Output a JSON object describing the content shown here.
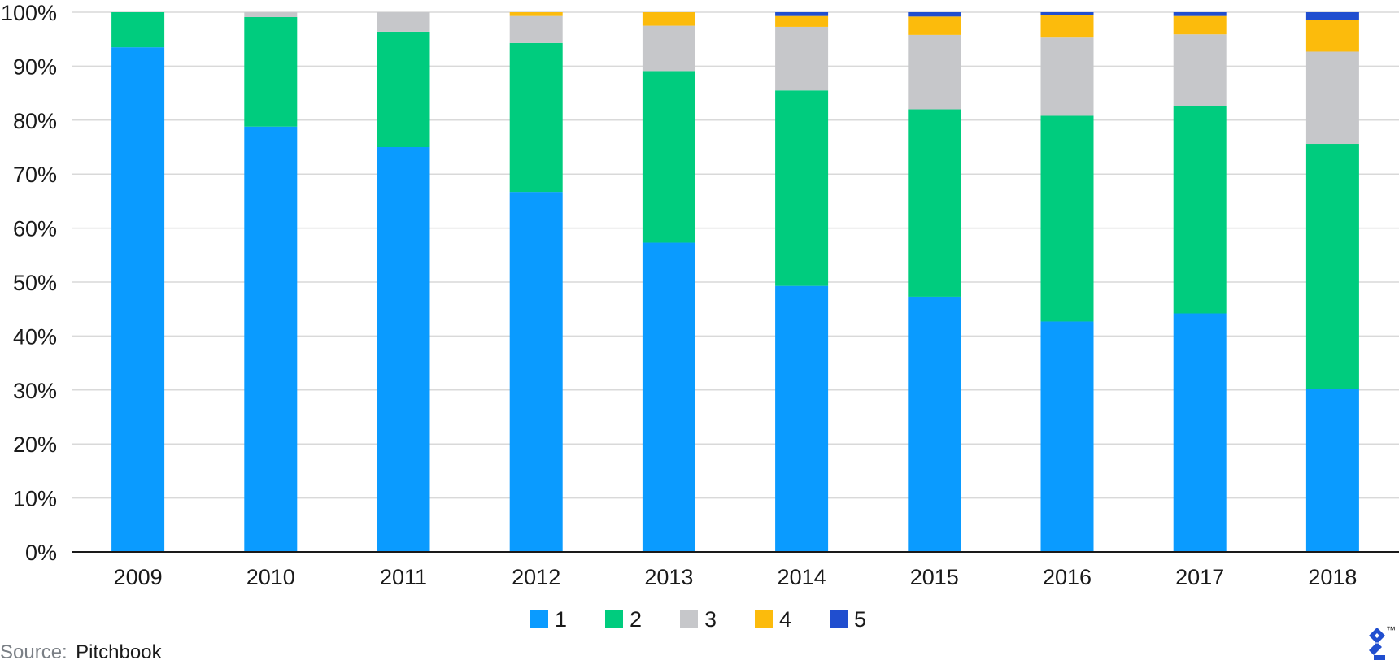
{
  "chart_data": {
    "type": "bar",
    "stacked": true,
    "categories": [
      "2009",
      "2010",
      "2011",
      "2012",
      "2013",
      "2014",
      "2015",
      "2016",
      "2017",
      "2018"
    ],
    "series": [
      {
        "name": "1",
        "color": "#0a9bff",
        "values": [
          93.5,
          78.8,
          75.0,
          66.7,
          57.3,
          49.3,
          47.3,
          42.7,
          44.2,
          30.2
        ]
      },
      {
        "name": "2",
        "color": "#00cc7e",
        "values": [
          6.5,
          20.3,
          21.4,
          27.6,
          31.8,
          36.2,
          34.7,
          38.1,
          38.4,
          45.4
        ]
      },
      {
        "name": "3",
        "color": "#c6c7ca",
        "values": [
          0.0,
          0.9,
          3.6,
          5.0,
          8.4,
          11.8,
          13.8,
          14.5,
          13.3,
          17.1
        ]
      },
      {
        "name": "4",
        "color": "#fcbb0c",
        "values": [
          0.0,
          0.0,
          0.0,
          0.7,
          2.5,
          2.0,
          3.4,
          4.1,
          3.4,
          5.8
        ]
      },
      {
        "name": "5",
        "color": "#204ecf",
        "values": [
          0.0,
          0.0,
          0.0,
          0.0,
          0.0,
          0.7,
          0.8,
          0.6,
          0.7,
          1.5
        ]
      }
    ],
    "y_ticks": [
      "0%",
      "10%",
      "20%",
      "30%",
      "40%",
      "50%",
      "60%",
      "70%",
      "80%",
      "90%",
      "100%"
    ],
    "ylim": [
      0,
      100
    ],
    "grid": true,
    "legend_position": "bottom-center"
  },
  "source": {
    "prefix": "Source:",
    "name": "Pitchbook"
  },
  "logo": {
    "icon": "toptal-logo-icon",
    "mark": "™",
    "color": "#204ecf"
  }
}
